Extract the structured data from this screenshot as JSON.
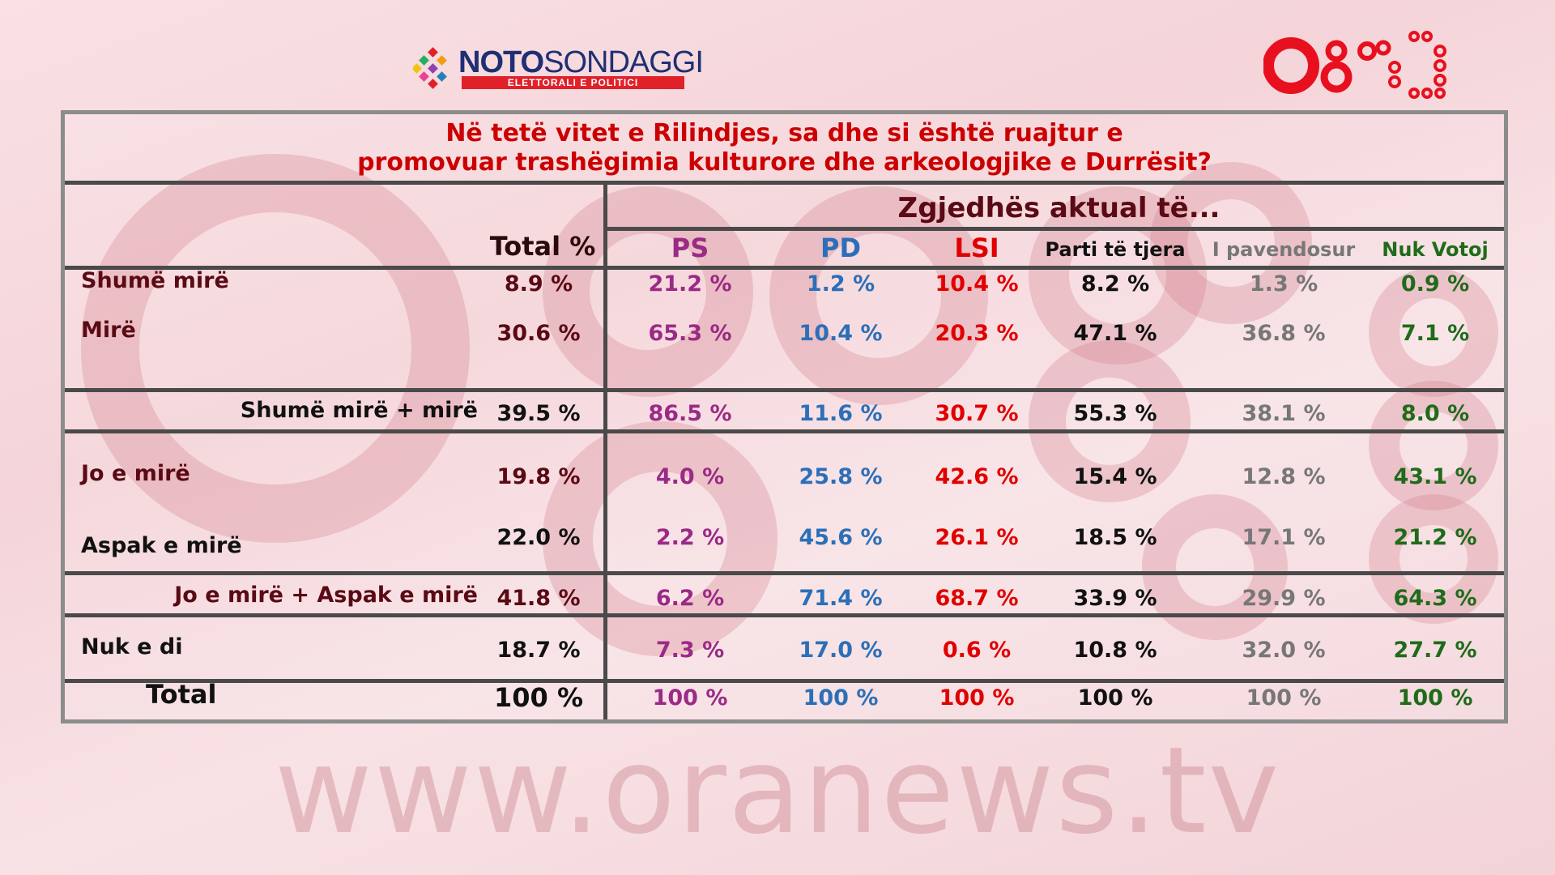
{
  "brand": {
    "noto_bold": "NOTO",
    "noto_light": "SONDAGGI",
    "noto_sub": "ELETTORALI E POLITICI",
    "site": "www.oranews.tv"
  },
  "chart_data": {
    "type": "table",
    "title_line1": "Në tetë vitet e Rilindjes, sa dhe si është ruajtur e",
    "title_line2": "promovuar trashëgimia kulturore dhe arkeologjike e Durrësit?",
    "group_header": "Zgjedhës aktual të...",
    "total_header": "Total %",
    "columns": [
      "PS",
      "PD",
      "LSI",
      "Parti të tjera",
      "I pavendosur",
      "Nuk Votoj"
    ],
    "column_colors": [
      "#9b2a86",
      "#2c6fb8",
      "#e00000",
      "#111111",
      "#777777",
      "#1f6b1a"
    ],
    "rows": [
      {
        "label": "Shumë mirë",
        "total": "8.9 %",
        "values": [
          "21.2 %",
          "1.2 %",
          "10.4 %",
          "8.2 %",
          "1.3 %",
          "0.9 %"
        ]
      },
      {
        "label": "Mirë",
        "total": "30.6 %",
        "values": [
          "65.3 %",
          "10.4 %",
          "20.3 %",
          "47.1 %",
          "36.8 %",
          "7.1 %"
        ]
      },
      {
        "label": "Shumë mirë + mirë",
        "total": "39.5 %",
        "values": [
          "86.5 %",
          "11.6 %",
          "30.7 %",
          "55.3 %",
          "38.1 %",
          "8.0 %"
        ]
      },
      {
        "label": "Jo e mirë",
        "total": "19.8 %",
        "values": [
          "4.0 %",
          "25.8 %",
          "42.6 %",
          "15.4 %",
          "12.8 %",
          "43.1 %"
        ]
      },
      {
        "label": "Aspak e mirë",
        "total": "22.0 %",
        "values": [
          "2.2 %",
          "45.6 %",
          "26.1 %",
          "18.5 %",
          "17.1 %",
          "21.2 %"
        ]
      },
      {
        "label": "Jo e mirë + Aspak e mirë",
        "total": "41.8 %",
        "values": [
          "6.2 %",
          "71.4 %",
          "68.7 %",
          "33.9 %",
          "29.9 %",
          "64.3 %"
        ]
      },
      {
        "label": "Nuk e di",
        "total": "18.7 %",
        "values": [
          "7.3 %",
          "17.0 %",
          "0.6 %",
          "10.8 %",
          "32.0 %",
          "27.7 %"
        ]
      },
      {
        "label": "Total",
        "total": "100 %",
        "values": [
          "100 %",
          "100 %",
          "100 %",
          "100 %",
          "100 %",
          "100 %"
        ]
      }
    ]
  }
}
